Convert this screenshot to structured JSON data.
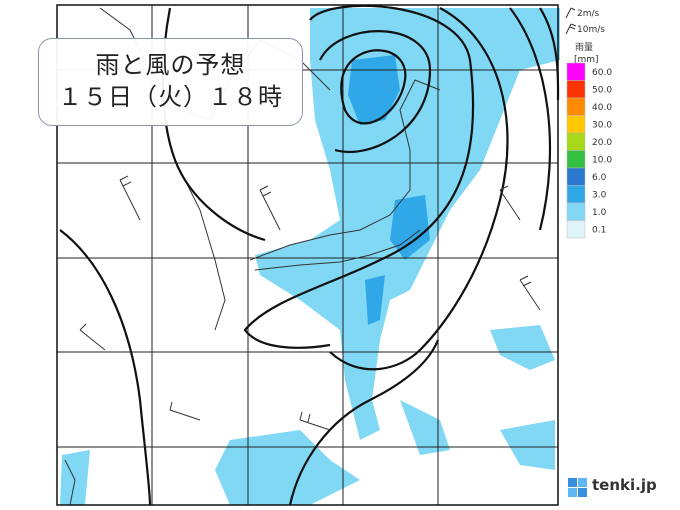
{
  "title": {
    "line1": "雨と風の予想",
    "line2": "１５日（火）１８時"
  },
  "wind_legend": [
    "2m/s",
    "10m/s"
  ],
  "rain_legend": {
    "title": "雨量",
    "unit": "[mm]",
    "levels": [
      {
        "label": "60.0",
        "color": "#ff00ff"
      },
      {
        "label": "50.0",
        "color": "#ff3300"
      },
      {
        "label": "40.0",
        "color": "#ff8c00"
      },
      {
        "label": "30.0",
        "color": "#ffc800"
      },
      {
        "label": "20.0",
        "color": "#a8d818"
      },
      {
        "label": "10.0",
        "color": "#33c040"
      },
      {
        "label": "6.0",
        "color": "#2a78d0"
      },
      {
        "label": "3.0",
        "color": "#30a8e8"
      },
      {
        "label": "1.0",
        "color": "#80d8f4"
      },
      {
        "label": "0.1",
        "color": "#e0f4fc"
      }
    ]
  },
  "logo": "tenki.jp"
}
